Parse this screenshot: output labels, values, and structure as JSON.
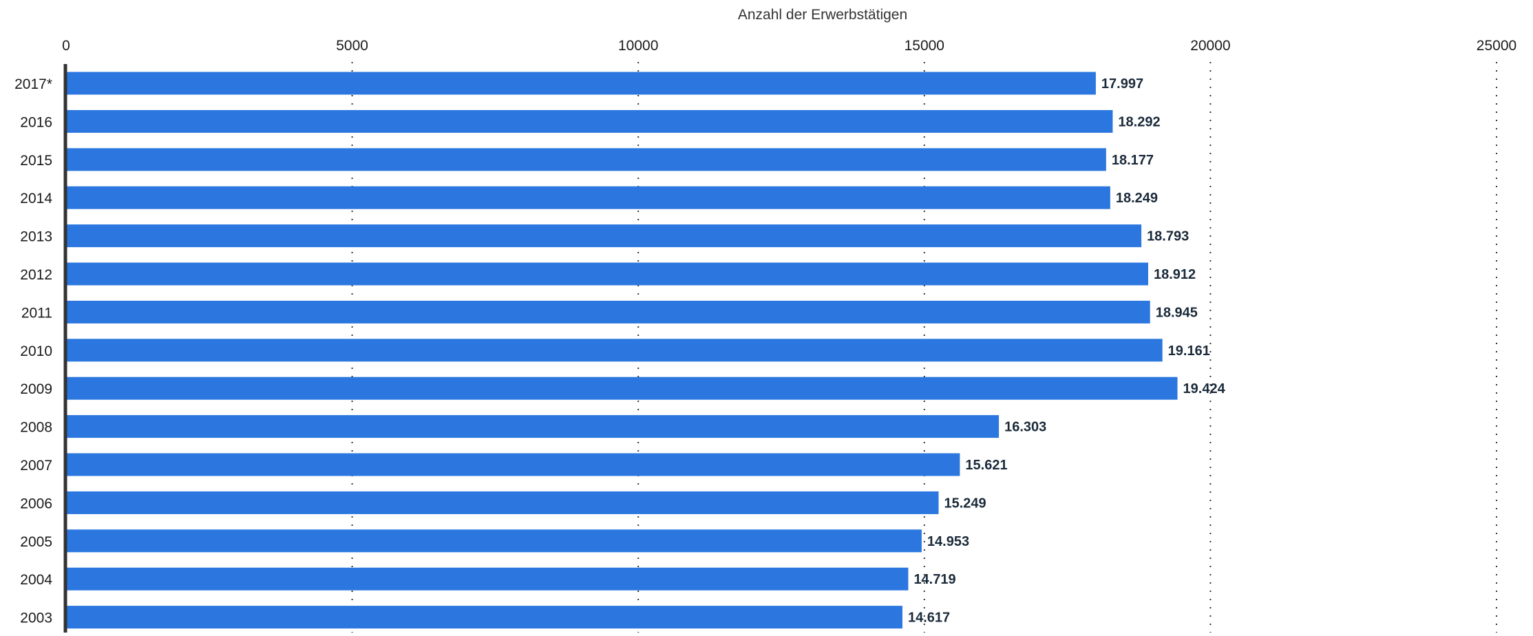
{
  "colors": {
    "bar": "#2b77df",
    "grid": "#333333",
    "axis_line": "#333333",
    "label": "#1a2a3a",
    "background": "#ffffff"
  },
  "chart_data": {
    "type": "bar",
    "orientation": "horizontal",
    "xlabel": "Anzahl der Erwerbstätigen",
    "x_axis_position": "top",
    "xlim": [
      0,
      25000
    ],
    "xticks": [
      0,
      5000,
      10000,
      15000,
      20000,
      25000
    ],
    "grid": "vertical dotted",
    "categories": [
      "2017*",
      "2016",
      "2015",
      "2014",
      "2013",
      "2012",
      "2011",
      "2010",
      "2009",
      "2008",
      "2007",
      "2006",
      "2005",
      "2004",
      "2003"
    ],
    "values": [
      17997,
      18292,
      18177,
      18249,
      18793,
      18912,
      18945,
      19161,
      19424,
      16303,
      15621,
      15249,
      14953,
      14719,
      14617
    ],
    "value_labels": [
      "17.997",
      "18.292",
      "18.177",
      "18.249",
      "18.793",
      "18.912",
      "18.945",
      "19.161",
      "19.424",
      "16.303",
      "15.621",
      "15.249",
      "14.953",
      "14.719",
      "14.617"
    ]
  }
}
